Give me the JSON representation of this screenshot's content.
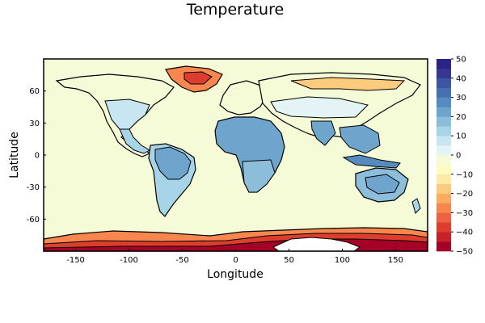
{
  "chart_data": {
    "type": "heatmap",
    "subtype": "filled-contour-world-map",
    "title": "Temperature",
    "xlabel": "Longitude",
    "ylabel": "Latitude",
    "xlim": [
      -180,
      180
    ],
    "ylim": [
      -90,
      90
    ],
    "x_ticks": [
      -150,
      -100,
      -50,
      0,
      50,
      100,
      150
    ],
    "y_ticks": [
      60,
      30,
      0,
      -30,
      -60
    ],
    "grid": false,
    "ocean_value": 0,
    "colorbar": {
      "label": "",
      "ticks": [
        50,
        40,
        30,
        20,
        10,
        0,
        -10,
        -20,
        -30,
        -40,
        -50
      ],
      "levels": [
        -50,
        -45,
        -40,
        -35,
        -30,
        -25,
        -20,
        -15,
        -10,
        -5,
        0,
        5,
        10,
        15,
        20,
        25,
        30,
        35,
        40,
        45,
        50
      ],
      "colors": [
        "#a50026",
        "#c62128",
        "#dc3d2d",
        "#ed6241",
        "#f7874f",
        "#fbab5f",
        "#fdcb7d",
        "#feeaa2",
        "#fefbc2",
        "#f5fbd6",
        "#e4f4f6",
        "#c7e6f1",
        "#a8d4e8",
        "#8cbeda",
        "#6fa5cd",
        "#568bbf",
        "#4571b1",
        "#3c56a4",
        "#36388f",
        "#2b2387"
      ]
    },
    "regions": [
      {
        "name": "North America",
        "values": [
          -5,
          0,
          5,
          20
        ]
      },
      {
        "name": "South America",
        "values": [
          15,
          25
        ]
      },
      {
        "name": "Europe",
        "values": [
          -5,
          0
        ]
      },
      {
        "name": "Africa",
        "values": [
          20,
          25,
          30
        ]
      },
      {
        "name": "Asia",
        "values": [
          -15,
          -10,
          0,
          5,
          20,
          25
        ]
      },
      {
        "name": "Australia",
        "values": [
          20,
          25
        ]
      },
      {
        "name": "Greenland",
        "values": [
          -30,
          -20,
          -10
        ]
      },
      {
        "name": "Antarctica",
        "values": [
          -50,
          -40,
          -30,
          -20
        ]
      }
    ]
  }
}
